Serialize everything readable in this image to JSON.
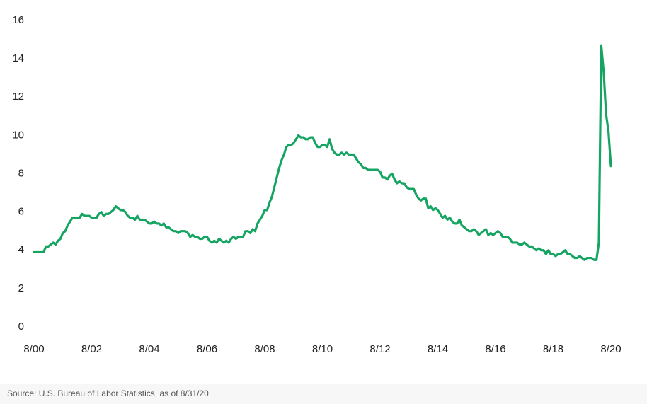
{
  "chart_data": {
    "type": "line",
    "source": "Source: U.S. Bureau of Labor Statistics, as of 8/31/20.",
    "categories": [
      "8/00",
      null,
      null,
      null,
      null,
      null,
      null,
      null,
      null,
      null,
      null,
      null,
      null,
      null,
      null,
      null,
      null,
      null,
      null,
      null,
      null,
      null,
      null,
      null,
      "8/02",
      null,
      null,
      null,
      null,
      null,
      null,
      null,
      null,
      null,
      null,
      null,
      null,
      null,
      null,
      null,
      null,
      null,
      null,
      null,
      null,
      null,
      null,
      null,
      "8/04",
      null,
      null,
      null,
      null,
      null,
      null,
      null,
      null,
      null,
      null,
      null,
      null,
      null,
      null,
      null,
      null,
      null,
      null,
      null,
      null,
      null,
      null,
      null,
      "8/06",
      null,
      null,
      null,
      null,
      null,
      null,
      null,
      null,
      null,
      null,
      null,
      null,
      null,
      null,
      null,
      null,
      null,
      null,
      null,
      null,
      null,
      null,
      null,
      "8/08",
      null,
      null,
      null,
      null,
      null,
      null,
      null,
      null,
      null,
      null,
      null,
      null,
      null,
      null,
      null,
      null,
      null,
      null,
      null,
      null,
      null,
      null,
      null,
      "8/10",
      null,
      null,
      null,
      null,
      null,
      null,
      null,
      null,
      null,
      null,
      null,
      null,
      null,
      null,
      null,
      null,
      null,
      null,
      null,
      null,
      null,
      null,
      null,
      "8/12",
      null,
      null,
      null,
      null,
      null,
      null,
      null,
      null,
      null,
      null,
      null,
      null,
      null,
      null,
      null,
      null,
      null,
      null,
      null,
      null,
      null,
      null,
      null,
      "8/14",
      null,
      null,
      null,
      null,
      null,
      null,
      null,
      null,
      null,
      null,
      null,
      null,
      null,
      null,
      null,
      null,
      null,
      null,
      null,
      null,
      null,
      null,
      null,
      "8/16",
      null,
      null,
      null,
      null,
      null,
      null,
      null,
      null,
      null,
      null,
      null,
      null,
      null,
      null,
      null,
      null,
      null,
      null,
      null,
      null,
      null,
      null,
      null,
      "8/18",
      null,
      null,
      null,
      null,
      null,
      null,
      null,
      null,
      null,
      null,
      null,
      null,
      null,
      null,
      null,
      null,
      null,
      null,
      null,
      null,
      null,
      null,
      null,
      "8/20"
    ],
    "color": "#16a463",
    "values": [
      3.9,
      3.9,
      3.9,
      3.9,
      3.9,
      4.2,
      4.2,
      4.3,
      4.4,
      4.3,
      4.5,
      4.6,
      4.9,
      5.0,
      5.3,
      5.5,
      5.7,
      5.7,
      5.7,
      5.7,
      5.9,
      5.8,
      5.8,
      5.8,
      5.7,
      5.7,
      5.7,
      5.9,
      6.0,
      5.8,
      5.9,
      5.9,
      6.0,
      6.1,
      6.3,
      6.2,
      6.1,
      6.1,
      6.0,
      5.8,
      5.7,
      5.7,
      5.6,
      5.8,
      5.6,
      5.6,
      5.6,
      5.5,
      5.4,
      5.4,
      5.5,
      5.4,
      5.4,
      5.3,
      5.4,
      5.2,
      5.2,
      5.1,
      5.0,
      5.0,
      4.9,
      5.0,
      5.0,
      5.0,
      4.9,
      4.7,
      4.8,
      4.7,
      4.7,
      4.6,
      4.6,
      4.7,
      4.7,
      4.5,
      4.4,
      4.5,
      4.4,
      4.6,
      4.5,
      4.4,
      4.5,
      4.4,
      4.6,
      4.7,
      4.6,
      4.7,
      4.7,
      4.7,
      5.0,
      5.0,
      4.9,
      5.1,
      5.0,
      5.4,
      5.6,
      5.8,
      6.1,
      6.1,
      6.5,
      6.8,
      7.3,
      7.8,
      8.3,
      8.7,
      9.0,
      9.4,
      9.5,
      9.5,
      9.6,
      9.8,
      10.0,
      9.9,
      9.9,
      9.8,
      9.8,
      9.9,
      9.9,
      9.6,
      9.4,
      9.4,
      9.5,
      9.5,
      9.4,
      9.8,
      9.3,
      9.1,
      9.0,
      9.0,
      9.1,
      9.0,
      9.1,
      9.0,
      9.0,
      9.0,
      8.8,
      8.6,
      8.5,
      8.3,
      8.3,
      8.2,
      8.2,
      8.2,
      8.2,
      8.2,
      8.1,
      7.8,
      7.8,
      7.7,
      7.9,
      8.0,
      7.7,
      7.5,
      7.6,
      7.5,
      7.5,
      7.3,
      7.2,
      7.2,
      7.2,
      6.9,
      6.7,
      6.6,
      6.7,
      6.7,
      6.2,
      6.3,
      6.1,
      6.2,
      6.1,
      5.9,
      5.7,
      5.8,
      5.6,
      5.7,
      5.5,
      5.4,
      5.4,
      5.6,
      5.3,
      5.2,
      5.1,
      5.0,
      5.0,
      5.1,
      5.0,
      4.8,
      4.9,
      5.0,
      5.1,
      4.8,
      4.9,
      4.8,
      4.9,
      5.0,
      4.9,
      4.7,
      4.7,
      4.7,
      4.6,
      4.4,
      4.4,
      4.4,
      4.3,
      4.3,
      4.4,
      4.3,
      4.2,
      4.2,
      4.1,
      4.0,
      4.1,
      4.0,
      4.0,
      3.8,
      4.0,
      3.8,
      3.8,
      3.7,
      3.8,
      3.8,
      3.9,
      4.0,
      3.8,
      3.8,
      3.7,
      3.6,
      3.6,
      3.7,
      3.6,
      3.5,
      3.6,
      3.6,
      3.6,
      3.5,
      3.5,
      4.4,
      14.7,
      13.3,
      11.1,
      10.2,
      8.4
    ],
    "ylim": [
      0,
      16
    ],
    "yticks": [
      0,
      2,
      4,
      6,
      8,
      10,
      12,
      14,
      16
    ],
    "grid": false
  }
}
